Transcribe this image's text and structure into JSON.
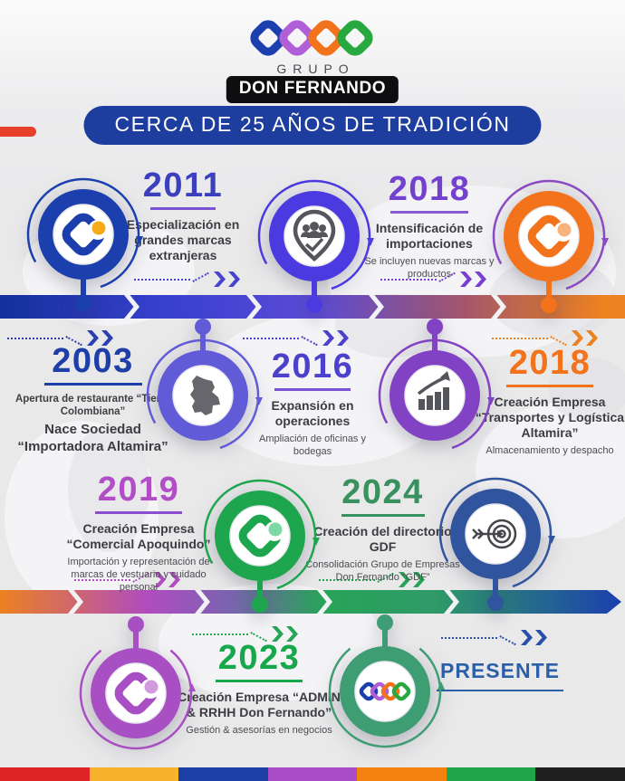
{
  "header": {
    "brand_top": "GRUPO",
    "brand_name": "DON FERNANDO",
    "banner": "CERCA DE 25 AÑOS DE TRADICIÓN"
  },
  "timeline": {
    "events": [
      {
        "id": "e2011",
        "year": "2011",
        "title": "Especialización en grandes marcas extranjeras",
        "subtitle": "",
        "accent": "#3c3fbe",
        "underline": "#7a52d4"
      },
      {
        "id": "e2018_importaciones",
        "year": "2018",
        "title": "Intensificación de importaciones",
        "subtitle": "Se incluyen nuevas marcas y productos",
        "accent": "#7440cf",
        "underline": "#8a5ad6"
      },
      {
        "id": "e2003",
        "year": "2003",
        "lead": "Apertura de restaurante “Tierra Colombiana”",
        "title": "Nace Sociedad “Importadora Altamira”",
        "subtitle": "",
        "accent": "#1e3ea8",
        "underline": "#1e3ea8"
      },
      {
        "id": "e2016",
        "year": "2016",
        "title": "Expansión en operaciones",
        "subtitle": "Ampliación de oficinas y bodegas",
        "accent": "#4b41cb",
        "underline": "#7a52d4"
      },
      {
        "id": "e2018_transportes",
        "year": "2018",
        "title": "Creación Empresa “Transportes y Logística Altamira”",
        "subtitle": "Almacenamiento y despacho",
        "accent": "#f2731b",
        "underline": "#f2731b"
      },
      {
        "id": "e2019",
        "year": "2019",
        "title": "Creación Empresa “Comercial Apoquindo”",
        "subtitle": "Importación y representación de marcas de vestuario y cuidado personal",
        "accent": "#b14ec6",
        "underline": "#8a4fd0"
      },
      {
        "id": "e2024",
        "year": "2024",
        "title": "Creación del directorio GDF",
        "subtitle": "Consolidación Grupo de Empresas Don Fernando “GDF”",
        "accent": "#38915e",
        "underline": "#38915e"
      },
      {
        "id": "e2023",
        "year": "2023",
        "title": "Creación Empresa “ADMIN & RRHH Don Fernando”",
        "subtitle": "Gestión & asesorías en negocios",
        "accent": "#17a84b",
        "underline": "#17a84b"
      }
    ],
    "present_label": "PRESENTE",
    "nodes": [
      {
        "icon": "gdf-monogram",
        "color": "#1c3fae",
        "dot": "#f6a919"
      },
      {
        "icon": "team-location-pin",
        "color": "#4b3ae0"
      },
      {
        "icon": "gdf-monogram",
        "color": "#f2731b",
        "dot": "#f8b27c"
      },
      {
        "icon": "colombia-map",
        "color": "#625bd8"
      },
      {
        "icon": "growth-chart",
        "color": "#8242c4"
      },
      {
        "icon": "gdf-monogram",
        "color": "#1ea64e",
        "dot": "#7cd9a4"
      },
      {
        "icon": "bullseye-target",
        "color": "#31549e"
      },
      {
        "icon": "gdf-monogram",
        "color": "#a94fc4",
        "dot": "#d49ade"
      },
      {
        "icon": "gdf-chain-logo",
        "color": "#3f9d74"
      }
    ]
  },
  "colors": {
    "banner_bg": "#1d3e9f",
    "red_accent": "#e6402c",
    "bar1_gradient": [
      "#14309b",
      "#3a41d0",
      "#5a4ad6",
      "#a2566c",
      "#ec8120"
    ],
    "bar2_gradient": [
      "#ec8120",
      "#b04cc0",
      "#7a63b0",
      "#27a457",
      "#2f9a68",
      "#1c3fae"
    ],
    "logo_links": [
      "#1b3fae",
      "#b15fd6",
      "#f2731b",
      "#27a93f"
    ],
    "footer_strip": [
      "#e02525",
      "#f6b32b",
      "#1b3fa5",
      "#a84cc8",
      "#f5820f",
      "#1fa64a",
      "#1e1e1e"
    ]
  }
}
